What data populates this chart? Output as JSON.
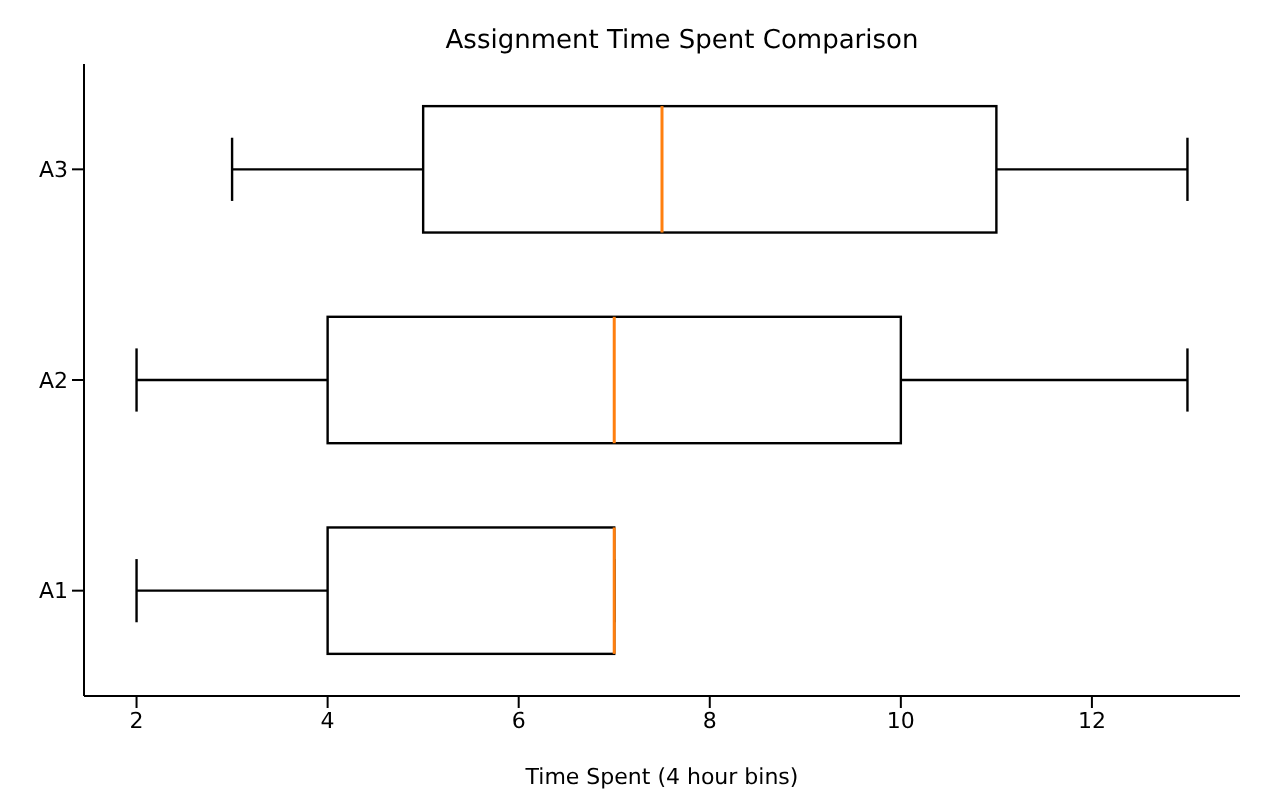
{
  "chart_data": {
    "type": "box",
    "orientation": "horizontal",
    "title": "Assignment Time Spent Comparison",
    "xlabel": "Time Spent (4 hour bins)",
    "categories": [
      "A3",
      "A2",
      "A1"
    ],
    "boxes": [
      {
        "low": 3,
        "q1": 5,
        "median": 7.5,
        "q3": 11,
        "high": 13
      },
      {
        "low": 2,
        "q1": 4,
        "median": 7,
        "q3": 10,
        "high": 13
      },
      {
        "low": 2,
        "q1": 4,
        "median": 7,
        "q3": 7,
        "high": 7
      }
    ],
    "xlim": [
      1.45,
      13.55
    ],
    "xticks": [
      2,
      4,
      6,
      8,
      10,
      12
    ]
  }
}
